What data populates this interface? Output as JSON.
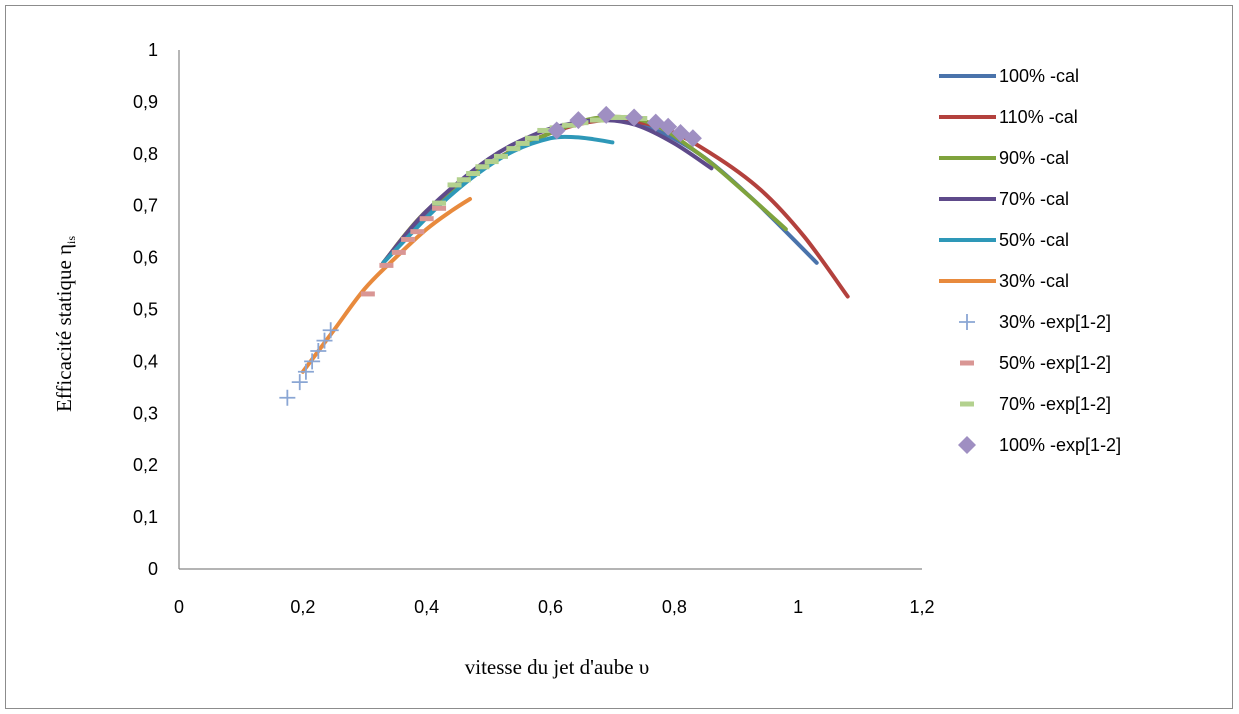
{
  "chart_data": {
    "type": "line",
    "xlabel": "vitesse du jet d'aube υ",
    "ylabel": "Efficacité statique η",
    "ylabel_subscript": "is",
    "xlim": [
      0,
      1.2
    ],
    "ylim": [
      0,
      1
    ],
    "x_ticks": [
      "0",
      "0,2",
      "0,4",
      "0,6",
      "0,8",
      "1",
      "1,2"
    ],
    "y_ticks": [
      "0",
      "0,1",
      "0,2",
      "0,3",
      "0,4",
      "0,5",
      "0,6",
      "0,7",
      "0,8",
      "0,9",
      "1"
    ],
    "grid": false,
    "legend_position": "right",
    "series": [
      {
        "name": "100%  -cal",
        "kind": "line",
        "color": "#4a73ab",
        "x": [
          0.33,
          0.4,
          0.5,
          0.6,
          0.68,
          0.76,
          0.84,
          0.92,
          0.98,
          1.03
        ],
        "y": [
          0.59,
          0.68,
          0.78,
          0.84,
          0.865,
          0.85,
          0.8,
          0.72,
          0.65,
          0.59
        ]
      },
      {
        "name": "110%  -cal",
        "kind": "line",
        "color": "#b3413d",
        "x": [
          0.33,
          0.4,
          0.5,
          0.6,
          0.69,
          0.78,
          0.86,
          0.94,
          1.01,
          1.08
        ],
        "y": [
          0.59,
          0.69,
          0.78,
          0.84,
          0.865,
          0.85,
          0.8,
          0.73,
          0.64,
          0.525
        ]
      },
      {
        "name": "90%  -cal",
        "kind": "line",
        "color": "#7fa33d",
        "x": [
          0.33,
          0.4,
          0.5,
          0.6,
          0.68,
          0.76,
          0.84,
          0.91,
          0.98
        ],
        "y": [
          0.59,
          0.69,
          0.78,
          0.84,
          0.87,
          0.86,
          0.8,
          0.73,
          0.655
        ]
      },
      {
        "name": "70%  -cal",
        "kind": "line",
        "color": "#5e4a8a",
        "x": [
          0.33,
          0.4,
          0.5,
          0.58,
          0.64,
          0.69,
          0.74,
          0.8,
          0.86
        ],
        "y": [
          0.59,
          0.69,
          0.79,
          0.84,
          0.86,
          0.865,
          0.855,
          0.82,
          0.772
        ]
      },
      {
        "name": "50%  -cal",
        "kind": "line",
        "color": "#2e98b8",
        "x": [
          0.33,
          0.37,
          0.42,
          0.48,
          0.54,
          0.6,
          0.64,
          0.67,
          0.7
        ],
        "y": [
          0.59,
          0.64,
          0.7,
          0.76,
          0.805,
          0.83,
          0.832,
          0.828,
          0.822
        ]
      },
      {
        "name": "30%  -cal",
        "kind": "line",
        "color": "#e88a3d",
        "x": [
          0.2,
          0.25,
          0.3,
          0.35,
          0.4,
          0.44,
          0.47
        ],
        "y": [
          0.38,
          0.46,
          0.54,
          0.6,
          0.655,
          0.69,
          0.713
        ]
      },
      {
        "name": "30%  -exp[1-2]",
        "kind": "plus",
        "color": "#8aa6d4",
        "x": [
          0.175,
          0.195,
          0.205,
          0.215,
          0.225,
          0.235,
          0.245
        ],
        "y": [
          0.33,
          0.36,
          0.38,
          0.4,
          0.42,
          0.44,
          0.46
        ]
      },
      {
        "name": "50%  -exp[1-2]",
        "kind": "dash",
        "color": "#d99694",
        "x": [
          0.305,
          0.335,
          0.355,
          0.37,
          0.385,
          0.4,
          0.42
        ],
        "y": [
          0.53,
          0.585,
          0.61,
          0.635,
          0.65,
          0.675,
          0.695
        ]
      },
      {
        "name": "70%  -exp[1-2]",
        "kind": "dash",
        "color": "#b3d18e",
        "x": [
          0.42,
          0.445,
          0.46,
          0.475,
          0.49,
          0.505,
          0.52,
          0.54,
          0.555,
          0.57,
          0.59,
          0.61,
          0.63,
          0.65,
          0.675,
          0.695,
          0.715,
          0.73,
          0.745
        ],
        "y": [
          0.705,
          0.74,
          0.75,
          0.762,
          0.775,
          0.785,
          0.795,
          0.81,
          0.82,
          0.83,
          0.845,
          0.85,
          0.855,
          0.86,
          0.865,
          0.87,
          0.87,
          0.87,
          0.868
        ]
      },
      {
        "name": "100%  -exp[1-2]",
        "kind": "diamond",
        "color": "#9f8fc2",
        "x": [
          0.61,
          0.645,
          0.69,
          0.735,
          0.77,
          0.79,
          0.81,
          0.83
        ],
        "y": [
          0.845,
          0.865,
          0.875,
          0.87,
          0.86,
          0.852,
          0.84,
          0.83
        ]
      }
    ]
  }
}
